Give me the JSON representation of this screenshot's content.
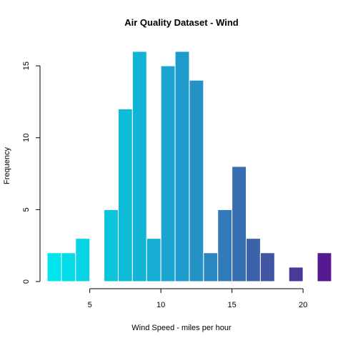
{
  "chart_data": {
    "type": "bar",
    "title": "Air Quality Dataset - Wind",
    "xlabel": "Wind Speed - miles per hour",
    "ylabel": "Frequency",
    "xlim": [
      1.7,
      21.1
    ],
    "ylim": [
      0,
      16
    ],
    "x_ticks": [
      5,
      10,
      15,
      20
    ],
    "y_ticks": [
      0,
      5,
      10,
      15
    ],
    "bin_width": 1,
    "bins": [
      {
        "x0": 2,
        "x1": 3,
        "value": 2,
        "color": "#00E5EE"
      },
      {
        "x0": 3,
        "x1": 4,
        "value": 2,
        "color": "#05DCE9"
      },
      {
        "x0": 4,
        "x1": 5,
        "value": 3,
        "color": "#08D4E5"
      },
      {
        "x0": 5,
        "x1": 6,
        "value": 0,
        "color": "#0ACBE0"
      },
      {
        "x0": 6,
        "x1": 7,
        "value": 5,
        "color": "#0CC3DC"
      },
      {
        "x0": 7,
        "x1": 8,
        "value": 12,
        "color": "#0EBCD9"
      },
      {
        "x0": 8,
        "x1": 9,
        "value": 16,
        "color": "#12B4D6"
      },
      {
        "x0": 9,
        "x1": 10,
        "value": 3,
        "color": "#15ADD3"
      },
      {
        "x0": 10,
        "x1": 11,
        "value": 15,
        "color": "#1AA4CF"
      },
      {
        "x0": 11,
        "x1": 12,
        "value": 16,
        "color": "#1F9BCB"
      },
      {
        "x0": 12,
        "x1": 13,
        "value": 14,
        "color": "#2592C6"
      },
      {
        "x0": 13,
        "x1": 14,
        "value": 2,
        "color": "#2B87BF"
      },
      {
        "x0": 14,
        "x1": 15,
        "value": 5,
        "color": "#317CB8"
      },
      {
        "x0": 15,
        "x1": 16,
        "value": 8,
        "color": "#376FB1"
      },
      {
        "x0": 16,
        "x1": 17,
        "value": 3,
        "color": "#3C62AA"
      },
      {
        "x0": 17,
        "x1": 18,
        "value": 2,
        "color": "#4155A2"
      },
      {
        "x0": 18,
        "x1": 19,
        "value": 0,
        "color": "#44489C"
      },
      {
        "x0": 19,
        "x1": 20,
        "value": 1,
        "color": "#4A3A98"
      },
      {
        "x0": 20,
        "x1": 21,
        "value": 0,
        "color": "#4F2C94"
      },
      {
        "x0": 21,
        "x1": 22,
        "value": 2,
        "color": "#561A8E"
      }
    ],
    "grid": false,
    "legend": "none"
  }
}
